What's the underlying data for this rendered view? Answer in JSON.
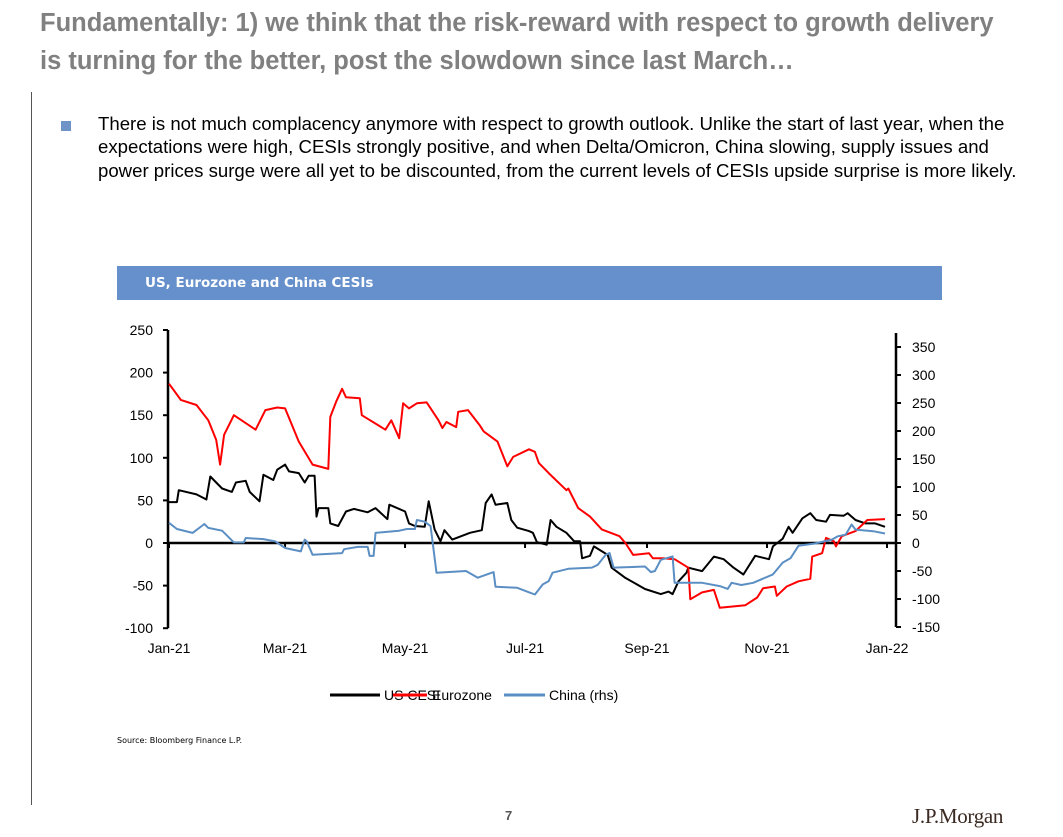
{
  "slide": {
    "title": "Fundamentally: 1) we think that the risk-reward with respect to growth delivery is turning for the better, post the slowdown since last March…",
    "bullet_text": "There is not much complacency anymore with respect to growth outlook. Unlike the start of last year, when the expectations were high, CESIs strongly positive, and when Delta/Omicron, China slowing, supply issues and power prices surge were all yet to be discounted, from the current levels of CESIs upside surprise is more likely.",
    "bullet_color": "#6f93c6",
    "source": "Source: Bloomberg Finance L.P.",
    "page_number": "7",
    "logo_text": "J.P.Morgan"
  },
  "chart_data": {
    "type": "line",
    "title": "US, Eurozone and China CESIs",
    "header_color": "#6690cb",
    "x_ticks": [
      "Jan-21",
      "Mar-21",
      "May-21",
      "Jul-21",
      "Sep-21",
      "Nov-21",
      "Jan-22"
    ],
    "x_tick_dates": [
      "2021-01-01",
      "2021-03-01",
      "2021-05-01",
      "2021-07-01",
      "2021-09-01",
      "2021-11-01",
      "2022-01-01"
    ],
    "xlim": [
      "2021-01-01",
      "2022-01-01"
    ],
    "y_left": {
      "lim": [
        -100,
        250
      ],
      "ticks": [
        -100,
        -50,
        0,
        50,
        100,
        150,
        200,
        250
      ]
    },
    "y_right": {
      "lim": [
        -150,
        375
      ],
      "ticks": [
        -150,
        -100,
        -50,
        0,
        50,
        100,
        150,
        200,
        250,
        300,
        350
      ]
    },
    "grid": false,
    "legend_position": "bottom",
    "series": [
      {
        "name": "US CESI",
        "axis": "left",
        "color": "#000000",
        "points": [
          [
            "2021-01-01",
            48
          ],
          [
            "2021-01-05",
            48
          ],
          [
            "2021-01-06",
            62
          ],
          [
            "2021-01-15",
            57
          ],
          [
            "2021-01-20",
            51
          ],
          [
            "2021-01-22",
            78
          ],
          [
            "2021-01-28",
            64
          ],
          [
            "2021-02-02",
            60
          ],
          [
            "2021-02-04",
            71
          ],
          [
            "2021-02-09",
            73
          ],
          [
            "2021-02-11",
            60
          ],
          [
            "2021-02-16",
            49
          ],
          [
            "2021-02-18",
            80
          ],
          [
            "2021-02-23",
            74
          ],
          [
            "2021-02-25",
            86
          ],
          [
            "2021-03-01",
            92
          ],
          [
            "2021-03-03",
            84
          ],
          [
            "2021-03-08",
            82
          ],
          [
            "2021-03-11",
            71
          ],
          [
            "2021-03-13",
            79
          ],
          [
            "2021-03-16",
            79
          ],
          [
            "2021-03-17",
            31
          ],
          [
            "2021-03-18",
            41
          ],
          [
            "2021-03-23",
            41
          ],
          [
            "2021-03-24",
            23
          ],
          [
            "2021-03-28",
            20
          ],
          [
            "2021-04-01",
            37
          ],
          [
            "2021-04-05",
            40
          ],
          [
            "2021-04-12",
            36
          ],
          [
            "2021-04-16",
            41
          ],
          [
            "2021-04-22",
            28
          ],
          [
            "2021-04-23",
            45
          ],
          [
            "2021-05-01",
            37
          ],
          [
            "2021-05-03",
            23
          ],
          [
            "2021-05-06",
            20
          ],
          [
            "2021-05-11",
            19
          ],
          [
            "2021-05-13",
            49
          ],
          [
            "2021-05-16",
            16
          ],
          [
            "2021-05-19",
            2
          ],
          [
            "2021-05-21",
            15
          ],
          [
            "2021-05-25",
            4
          ],
          [
            "2021-06-03",
            12
          ],
          [
            "2021-06-09",
            15
          ],
          [
            "2021-06-11",
            47
          ],
          [
            "2021-06-14",
            57
          ],
          [
            "2021-06-16",
            45
          ],
          [
            "2021-06-22",
            47
          ],
          [
            "2021-06-24",
            27
          ],
          [
            "2021-06-27",
            18
          ],
          [
            "2021-07-03",
            14
          ],
          [
            "2021-07-05",
            12
          ],
          [
            "2021-07-07",
            1
          ],
          [
            "2021-07-12",
            -2
          ],
          [
            "2021-07-14",
            27
          ],
          [
            "2021-07-17",
            19
          ],
          [
            "2021-07-22",
            12
          ],
          [
            "2021-07-26",
            2
          ],
          [
            "2021-07-29",
            2
          ],
          [
            "2021-07-30",
            -18
          ],
          [
            "2021-08-03",
            -15
          ],
          [
            "2021-08-05",
            -4
          ],
          [
            "2021-08-12",
            -14
          ],
          [
            "2021-08-14",
            -29
          ],
          [
            "2021-08-21",
            -41
          ],
          [
            "2021-08-31",
            -54
          ],
          [
            "2021-09-08",
            -60
          ],
          [
            "2021-09-12",
            -57
          ],
          [
            "2021-09-14",
            -60
          ],
          [
            "2021-09-17",
            -45
          ],
          [
            "2021-09-21",
            -35
          ],
          [
            "2021-09-22",
            -29
          ],
          [
            "2021-09-29",
            -33
          ],
          [
            "2021-10-05",
            -16
          ],
          [
            "2021-10-10",
            -19
          ],
          [
            "2021-10-15",
            -29
          ],
          [
            "2021-10-20",
            -37
          ],
          [
            "2021-10-26",
            -15
          ],
          [
            "2021-11-02",
            -19
          ],
          [
            "2021-11-04",
            -4
          ],
          [
            "2021-11-09",
            5
          ],
          [
            "2021-11-12",
            19
          ],
          [
            "2021-11-14",
            12
          ],
          [
            "2021-11-19",
            29
          ],
          [
            "2021-11-23",
            35
          ],
          [
            "2021-11-26",
            27
          ],
          [
            "2021-12-01",
            25
          ],
          [
            "2021-12-03",
            33
          ],
          [
            "2021-12-10",
            32
          ],
          [
            "2021-12-12",
            35
          ],
          [
            "2021-12-16",
            27
          ],
          [
            "2021-12-21",
            23
          ],
          [
            "2021-12-26",
            23
          ],
          [
            "2021-12-31",
            19
          ]
        ]
      },
      {
        "name": "Eurozone",
        "axis": "left",
        "color": "#ff0000",
        "points": [
          [
            "2021-01-01",
            187
          ],
          [
            "2021-01-07",
            168
          ],
          [
            "2021-01-15",
            162
          ],
          [
            "2021-01-21",
            144
          ],
          [
            "2021-01-25",
            121
          ],
          [
            "2021-01-27",
            92
          ],
          [
            "2021-01-29",
            127
          ],
          [
            "2021-02-03",
            150
          ],
          [
            "2021-02-14",
            133
          ],
          [
            "2021-02-19",
            156
          ],
          [
            "2021-02-25",
            159
          ],
          [
            "2021-03-01",
            158
          ],
          [
            "2021-03-08",
            119
          ],
          [
            "2021-03-15",
            92
          ],
          [
            "2021-03-23",
            87
          ],
          [
            "2021-03-24",
            148
          ],
          [
            "2021-03-27",
            166
          ],
          [
            "2021-03-30",
            181
          ],
          [
            "2021-04-01",
            171
          ],
          [
            "2021-04-08",
            170
          ],
          [
            "2021-04-09",
            150
          ],
          [
            "2021-04-21",
            133
          ],
          [
            "2021-04-24",
            144
          ],
          [
            "2021-04-28",
            123
          ],
          [
            "2021-04-30",
            164
          ],
          [
            "2021-05-03",
            158
          ],
          [
            "2021-05-07",
            164
          ],
          [
            "2021-05-12",
            165
          ],
          [
            "2021-05-18",
            144
          ],
          [
            "2021-05-20",
            135
          ],
          [
            "2021-05-22",
            142
          ],
          [
            "2021-05-27",
            136
          ],
          [
            "2021-05-28",
            154
          ],
          [
            "2021-06-02",
            156
          ],
          [
            "2021-06-08",
            138
          ],
          [
            "2021-06-10",
            131
          ],
          [
            "2021-06-17",
            119
          ],
          [
            "2021-06-22",
            90
          ],
          [
            "2021-06-25",
            101
          ],
          [
            "2021-07-03",
            110
          ],
          [
            "2021-07-06",
            107
          ],
          [
            "2021-07-08",
            94
          ],
          [
            "2021-07-13",
            82
          ],
          [
            "2021-07-22",
            62
          ],
          [
            "2021-07-23",
            64
          ],
          [
            "2021-07-28",
            41
          ],
          [
            "2021-08-03",
            31
          ],
          [
            "2021-08-09",
            16
          ],
          [
            "2021-08-18",
            8
          ],
          [
            "2021-08-21",
            0
          ],
          [
            "2021-08-25",
            -14
          ],
          [
            "2021-09-02",
            -12
          ],
          [
            "2021-09-04",
            -18
          ],
          [
            "2021-09-09",
            -18
          ],
          [
            "2021-09-15",
            -19
          ],
          [
            "2021-09-22",
            -29
          ],
          [
            "2021-09-23",
            -66
          ],
          [
            "2021-09-29",
            -58
          ],
          [
            "2021-10-05",
            -55
          ],
          [
            "2021-10-08",
            -76
          ],
          [
            "2021-10-21",
            -73
          ],
          [
            "2021-10-27",
            -64
          ],
          [
            "2021-10-30",
            -53
          ],
          [
            "2021-11-05",
            -51
          ],
          [
            "2021-11-06",
            -62
          ],
          [
            "2021-11-11",
            -51
          ],
          [
            "2021-11-17",
            -45
          ],
          [
            "2021-11-23",
            -42
          ],
          [
            "2021-11-24",
            -16
          ],
          [
            "2021-11-29",
            -12
          ],
          [
            "2021-12-01",
            6
          ],
          [
            "2021-12-05",
            2
          ],
          [
            "2021-12-06",
            -4
          ],
          [
            "2021-12-09",
            8
          ],
          [
            "2021-12-16",
            14
          ],
          [
            "2021-12-22",
            27
          ],
          [
            "2021-12-31",
            28
          ]
        ]
      },
      {
        "name": "China (rhs)",
        "axis": "right",
        "color": "#5b8fc4",
        "points": [
          [
            "2021-01-01",
            36
          ],
          [
            "2021-01-05",
            25
          ],
          [
            "2021-01-13",
            18
          ],
          [
            "2021-01-19",
            34
          ],
          [
            "2021-01-21",
            27
          ],
          [
            "2021-01-28",
            22
          ],
          [
            "2021-02-03",
            1
          ],
          [
            "2021-02-08",
            1
          ],
          [
            "2021-02-09",
            9
          ],
          [
            "2021-02-18",
            7
          ],
          [
            "2021-02-24",
            3
          ],
          [
            "2021-03-01",
            -9
          ],
          [
            "2021-03-09",
            -15
          ],
          [
            "2021-03-11",
            6
          ],
          [
            "2021-03-12",
            3
          ],
          [
            "2021-03-15",
            -21
          ],
          [
            "2021-03-30",
            -18
          ],
          [
            "2021-03-31",
            -11
          ],
          [
            "2021-04-07",
            -7
          ],
          [
            "2021-04-12",
            -7
          ],
          [
            "2021-04-13",
            -23
          ],
          [
            "2021-04-15",
            -23
          ],
          [
            "2021-04-16",
            18
          ],
          [
            "2021-04-28",
            22
          ],
          [
            "2021-05-02",
            25
          ],
          [
            "2021-05-06",
            25
          ],
          [
            "2021-05-07",
            41
          ],
          [
            "2021-05-11",
            38
          ],
          [
            "2021-05-14",
            30
          ],
          [
            "2021-05-17",
            -53
          ],
          [
            "2021-06-01",
            -50
          ],
          [
            "2021-06-07",
            -62
          ],
          [
            "2021-06-15",
            -52
          ],
          [
            "2021-06-16",
            -78
          ],
          [
            "2021-06-27",
            -80
          ],
          [
            "2021-07-03",
            -88
          ],
          [
            "2021-07-06",
            -92
          ],
          [
            "2021-07-10",
            -74
          ],
          [
            "2021-07-13",
            -68
          ],
          [
            "2021-07-15",
            -53
          ],
          [
            "2021-07-23",
            -46
          ],
          [
            "2021-08-04",
            -44
          ],
          [
            "2021-08-07",
            -39
          ],
          [
            "2021-08-11",
            -21
          ],
          [
            "2021-08-13",
            -18
          ],
          [
            "2021-08-15",
            -44
          ],
          [
            "2021-08-31",
            -42
          ],
          [
            "2021-09-03",
            -52
          ],
          [
            "2021-09-05",
            -50
          ],
          [
            "2021-09-08",
            -30
          ],
          [
            "2021-09-14",
            -24
          ],
          [
            "2021-09-15",
            -71
          ],
          [
            "2021-09-29",
            -71
          ],
          [
            "2021-10-08",
            -77
          ],
          [
            "2021-10-12",
            -82
          ],
          [
            "2021-10-14",
            -71
          ],
          [
            "2021-10-19",
            -75
          ],
          [
            "2021-10-25",
            -71
          ],
          [
            "2021-11-04",
            -56
          ],
          [
            "2021-11-09",
            -35
          ],
          [
            "2021-11-13",
            -27
          ],
          [
            "2021-11-17",
            -5
          ],
          [
            "2021-11-25",
            -1
          ],
          [
            "2021-12-04",
            6
          ],
          [
            "2021-12-07",
            12
          ],
          [
            "2021-12-11",
            15
          ],
          [
            "2021-12-14",
            33
          ],
          [
            "2021-12-16",
            24
          ],
          [
            "2021-12-25",
            21
          ],
          [
            "2021-12-31",
            17
          ]
        ]
      }
    ]
  }
}
